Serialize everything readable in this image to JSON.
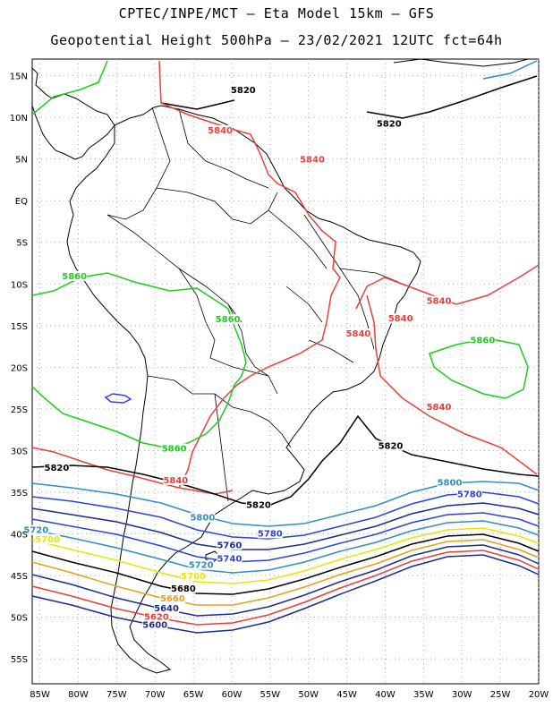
{
  "header": {
    "line1": "CPTEC/INPE/MCT –  Eta Model 15km – GFS",
    "line2": "Geopotential Height 500hPa – 23/02/2021 12UTC fct=64h"
  },
  "axes": {
    "lat_ticks": [
      "15N",
      "10N",
      "5N",
      "EQ",
      "5S",
      "10S",
      "15S",
      "20S",
      "25S",
      "30S",
      "35S",
      "40S",
      "45S",
      "50S",
      "55S"
    ],
    "lon_ticks": [
      "85W",
      "80W",
      "75W",
      "70W",
      "65W",
      "60W",
      "55W",
      "50W",
      "45W",
      "40W",
      "35W",
      "30W",
      "25W",
      "20W"
    ],
    "lat_range": [
      17,
      -58
    ],
    "lon_range": [
      -86,
      -20
    ],
    "grid": "dotted"
  },
  "contour_labels": [
    {
      "text": "5820",
      "lon": -58.5,
      "lat": 13.0,
      "color": "#000000"
    },
    {
      "text": "5820",
      "lon": -39.5,
      "lat": 9.0,
      "color": "#000000"
    },
    {
      "text": "5840",
      "lon": -61.5,
      "lat": 8.2,
      "color": "#e8413c"
    },
    {
      "text": "5840",
      "lon": -49.5,
      "lat": 4.7,
      "color": "#e8413c"
    },
    {
      "text": "5860",
      "lon": -80.5,
      "lat": -9.3,
      "color": "#1ecc1e"
    },
    {
      "text": "5860",
      "lon": -60.5,
      "lat": -14.5,
      "color": "#1ecc1e"
    },
    {
      "text": "5840",
      "lon": -43.5,
      "lat": -16.2,
      "color": "#e8413c"
    },
    {
      "text": "5840",
      "lon": -38.0,
      "lat": -14.4,
      "color": "#e8413c"
    },
    {
      "text": "5840",
      "lon": -33.0,
      "lat": -12.3,
      "color": "#e8413c"
    },
    {
      "text": "5860",
      "lon": -27.3,
      "lat": -17.0,
      "color": "#1ecc1e"
    },
    {
      "text": "5840",
      "lon": -33.0,
      "lat": -25.0,
      "color": "#e8413c"
    },
    {
      "text": "5820",
      "lon": -39.3,
      "lat": -29.7,
      "color": "#000000"
    },
    {
      "text": "5860",
      "lon": -67.5,
      "lat": -30.0,
      "color": "#1ecc1e"
    },
    {
      "text": "5840",
      "lon": -67.3,
      "lat": -33.8,
      "color": "#e8413c"
    },
    {
      "text": "5820",
      "lon": -82.8,
      "lat": -32.3,
      "color": "#000000"
    },
    {
      "text": "5820",
      "lon": -56.5,
      "lat": -36.8,
      "color": "#000000"
    },
    {
      "text": "5800",
      "lon": -31.6,
      "lat": -34.1,
      "color": "#2f8fbf"
    },
    {
      "text": "5780",
      "lon": -29.0,
      "lat": -35.5,
      "color": "#2c45d6"
    },
    {
      "text": "5800",
      "lon": -63.8,
      "lat": -38.3,
      "color": "#2f8fbf"
    },
    {
      "text": "5780",
      "lon": -55.0,
      "lat": -40.2,
      "color": "#2c45d6"
    },
    {
      "text": "5720",
      "lon": -85.5,
      "lat": -39.8,
      "color": "#2f8fbf"
    },
    {
      "text": "5700",
      "lon": -84.0,
      "lat": -40.9,
      "color": "#e6e600"
    },
    {
      "text": "5760",
      "lon": -60.3,
      "lat": -41.6,
      "color": "#1b2e8c"
    },
    {
      "text": "5740",
      "lon": -60.3,
      "lat": -43.2,
      "color": "#2c45d6"
    },
    {
      "text": "5720",
      "lon": -64.0,
      "lat": -44.0,
      "color": "#2f8fbf"
    },
    {
      "text": "5700",
      "lon": -65.0,
      "lat": -45.3,
      "color": "#e6e600"
    },
    {
      "text": "5680",
      "lon": -66.3,
      "lat": -46.8,
      "color": "#000000"
    },
    {
      "text": "5660",
      "lon": -67.7,
      "lat": -48.0,
      "color": "#e6a020"
    },
    {
      "text": "5640",
      "lon": -68.5,
      "lat": -49.2,
      "color": "#1b2e8c"
    },
    {
      "text": "5620",
      "lon": -69.8,
      "lat": -50.2,
      "color": "#e8413c"
    },
    {
      "text": "5600",
      "lon": -70.0,
      "lat": -51.2,
      "color": "#1b2e8c"
    }
  ]
}
